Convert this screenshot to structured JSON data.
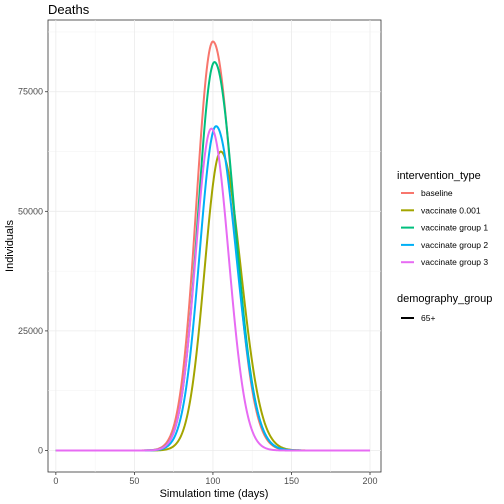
{
  "chart_data": {
    "type": "line",
    "title": "Deaths",
    "xlabel": "Simulation time (days)",
    "ylabel": "Individuals",
    "xlim": [
      -5,
      207
    ],
    "ylim": [
      -4500,
      90000
    ],
    "x_ticks": [
      0,
      50,
      100,
      150,
      200
    ],
    "y_ticks": [
      0,
      25000,
      50000,
      75000
    ],
    "x_tick_labels": [
      "0",
      "50",
      "100",
      "150",
      "200"
    ],
    "y_tick_labels": [
      "0",
      "25000",
      "50000",
      "75000"
    ],
    "grid": true,
    "legend_position": "right",
    "legend": {
      "color_title": "intervention_type",
      "linetype_title": "demography_group",
      "linetype_entries": [
        "65+"
      ]
    },
    "series": [
      {
        "name": "baseline",
        "color": "#F8766D",
        "peak_x": 100,
        "peak_y": 85500,
        "sigma_left": 10.5,
        "sigma_right": 12.8
      },
      {
        "name": "vaccinate 0.001",
        "color": "#A3A500",
        "peak_x": 105,
        "peak_y": 62500,
        "sigma_left": 10.3,
        "sigma_right": 12.8
      },
      {
        "name": "vaccinate group 1",
        "color": "#00BF7D",
        "peak_x": 101,
        "peak_y": 81200,
        "sigma_left": 10.5,
        "sigma_right": 12.8
      },
      {
        "name": "vaccinate group 2",
        "color": "#00B0F6",
        "peak_x": 102,
        "peak_y": 67800,
        "sigma_left": 10.5,
        "sigma_right": 12.8
      },
      {
        "name": "vaccinate group 3",
        "color": "#E76BF3",
        "peak_x": 99,
        "peak_y": 67300,
        "sigma_left": 10.0,
        "sigma_right": 11.0
      }
    ]
  }
}
